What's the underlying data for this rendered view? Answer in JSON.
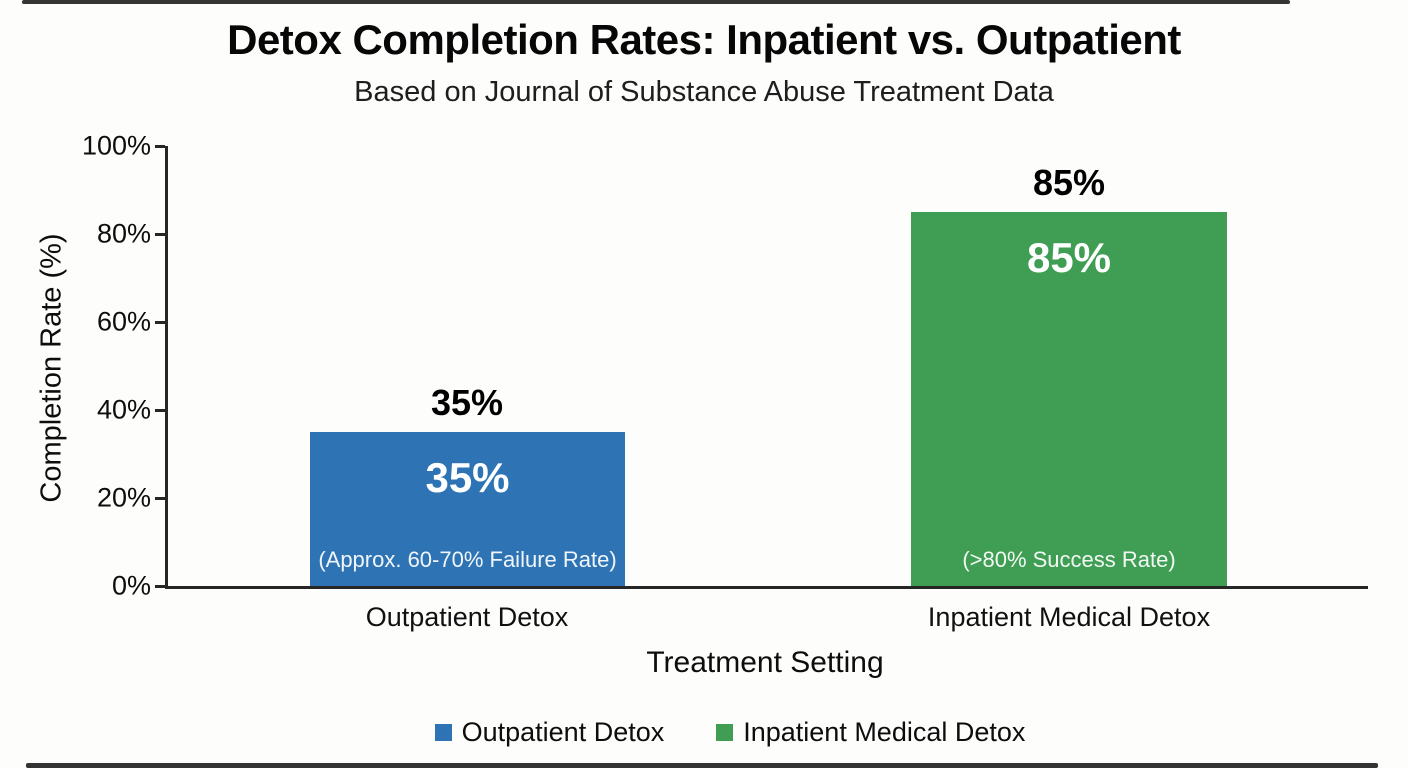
{
  "chart_data": {
    "type": "bar",
    "title": "Detox Completion Rates: Inpatient vs. Outpatient",
    "subtitle": "Based on Journal of Substance Abuse Treatment Data",
    "xlabel": "Treatment Setting",
    "ylabel": "Completion Rate (%)",
    "categories": [
      "Outpatient Detox",
      "Inpatient Medical Detox"
    ],
    "values": [
      35,
      85
    ],
    "ylim": [
      0,
      100
    ],
    "yticks": [
      "0%",
      "20%",
      "40%",
      "60%",
      "80%",
      "100%"
    ],
    "grid": false,
    "legend_position": "bottom",
    "axis_color": "#262626",
    "series": [
      {
        "name": "Outpatient Detox",
        "value": 35,
        "color": "#2e74b5",
        "value_label_outside": "35%",
        "value_label_inside": "35%",
        "annotation": "(Approx. 60-70% Failure Rate)"
      },
      {
        "name": "Inpatient Medical Detox",
        "value": 85,
        "color": "#3f9e54",
        "value_label_outside": "85%",
        "value_label_inside": "85%",
        "annotation": "(>80% Success Rate)"
      }
    ],
    "legend": [
      {
        "label": "Outpatient Detox",
        "color": "#2e74b5"
      },
      {
        "label": "Inpatient Medical Detox",
        "color": "#3f9e54"
      }
    ]
  }
}
